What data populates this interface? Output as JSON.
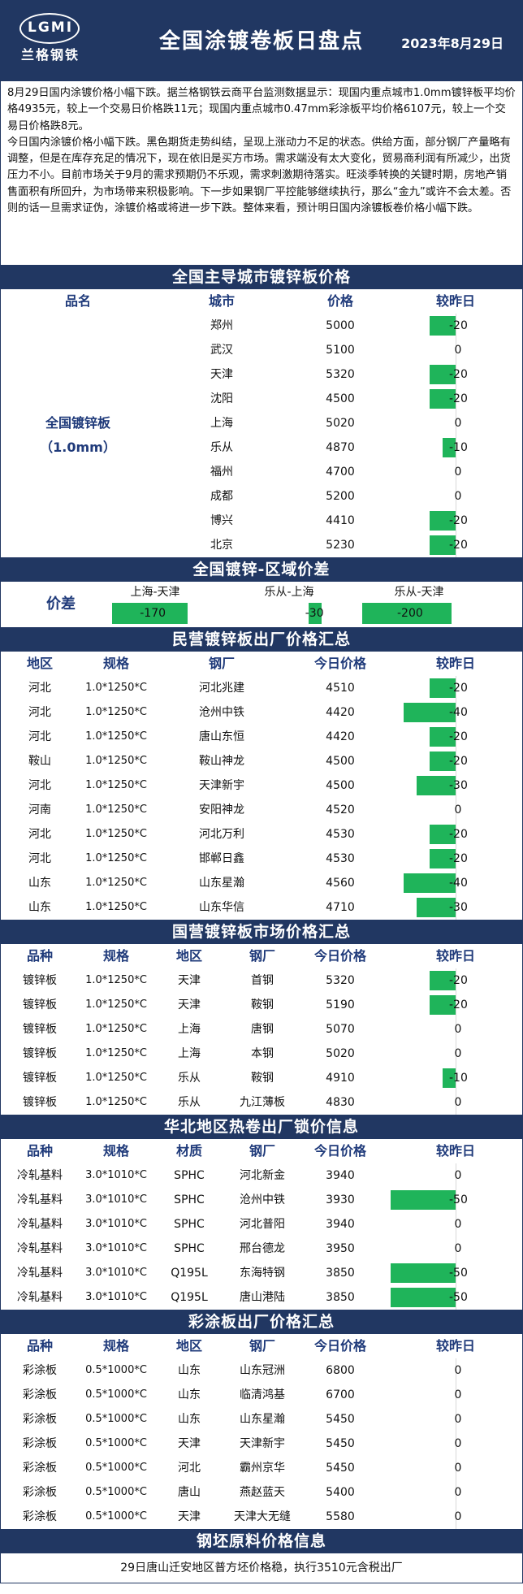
{
  "header": {
    "logo_mark": "LGMI",
    "logo_cn": "兰格钢铁",
    "title": "全国涂镀卷板日盘点",
    "date": "2023年8月29日"
  },
  "intro": {
    "p1": "8月29日国内涂镀价格小幅下跌。据兰格钢铁云商平台监测数据显示：现国内重点城市1.0mm镀锌板平均价格4935元，较上一个交易日价格跌11元；现国内重点城市0.47mm彩涂板平均价格6107元，较上一个交易日价格跌8元。",
    "p2": "今日国内涂镀价格小幅下跌。黑色期货走势纠结，呈现上涨动力不足的状态。供给方面，部分钢厂产量略有调整，但是在库存充足的情况下，现在依旧是买方市场。需求端没有太大变化，贸易商利润有所减少，出货压力不小。目前市场关于9月的需求预期仍不乐观，需求刺激期待落实。旺淡季转换的关键时期，房地产销售面积有所回升，为市场带来积极影响。下一步如果钢厂平控能够继续执行，那么“金九”或许不会太差。否则的话一旦需求证伪，涂镀价格或将进一步下跌。整体来看，预计明日国内涂镀板卷价格小幅下跌。"
  },
  "colors": {
    "navy": "#213762",
    "green": "#1fb45a",
    "label_blue": "#1f3a7a"
  },
  "s1": {
    "title": "全国主导城市镀锌板价格",
    "headers": [
      "品名",
      "城市",
      "价格",
      "较昨日"
    ],
    "product": "全国镀锌板",
    "spec": "（1.0mm）",
    "rows": [
      {
        "city": "郑州",
        "price": "5000",
        "chg": -20
      },
      {
        "city": "武汉",
        "price": "5100",
        "chg": 0
      },
      {
        "city": "天津",
        "price": "5320",
        "chg": -20
      },
      {
        "city": "沈阳",
        "price": "4500",
        "chg": -20
      },
      {
        "city": "上海",
        "price": "5020",
        "chg": 0
      },
      {
        "city": "乐从",
        "price": "4870",
        "chg": -10
      },
      {
        "city": "福州",
        "price": "4700",
        "chg": 0
      },
      {
        "city": "成都",
        "price": "5200",
        "chg": 0
      },
      {
        "city": "博兴",
        "price": "4410",
        "chg": -20
      },
      {
        "city": "北京",
        "price": "5230",
        "chg": -20
      }
    ]
  },
  "s2": {
    "title": "全国镀锌-区域价差",
    "label": "价差",
    "items": [
      {
        "name": "上海-天津",
        "value": -170
      },
      {
        "name": "乐从-上海",
        "value": -30
      },
      {
        "name": "乐从-天津",
        "value": -200
      }
    ]
  },
  "s3": {
    "title": "民营镀锌板出厂价格汇总",
    "headers": [
      "地区",
      "规格",
      "钢厂",
      "今日价格",
      "较昨日"
    ],
    "rows": [
      {
        "region": "河北",
        "spec": "1.0*1250*C",
        "mill": "河北兆建",
        "price": "4510",
        "chg": -20
      },
      {
        "region": "河北",
        "spec": "1.0*1250*C",
        "mill": "沧州中铁",
        "price": "4420",
        "chg": -40
      },
      {
        "region": "河北",
        "spec": "1.0*1250*C",
        "mill": "唐山东恒",
        "price": "4420",
        "chg": -20
      },
      {
        "region": "鞍山",
        "spec": "1.0*1250*C",
        "mill": "鞍山神龙",
        "price": "4500",
        "chg": -20
      },
      {
        "region": "河北",
        "spec": "1.0*1250*C",
        "mill": "天津新宇",
        "price": "4500",
        "chg": -30
      },
      {
        "region": "河南",
        "spec": "1.0*1250*C",
        "mill": "安阳神龙",
        "price": "4520",
        "chg": 0
      },
      {
        "region": "河北",
        "spec": "1.0*1250*C",
        "mill": "河北万利",
        "price": "4530",
        "chg": -20
      },
      {
        "region": "河北",
        "spec": "1.0*1250*C",
        "mill": "邯郸日鑫",
        "price": "4530",
        "chg": -20
      },
      {
        "region": "山东",
        "spec": "1.0*1250*C",
        "mill": "山东星瀚",
        "price": "4560",
        "chg": -40
      },
      {
        "region": "山东",
        "spec": "1.0*1250*C",
        "mill": "山东华信",
        "price": "4710",
        "chg": -30
      }
    ]
  },
  "s4": {
    "title": "国营镀锌板市场价格汇总",
    "headers": [
      "品种",
      "规格",
      "地区",
      "钢厂",
      "今日价格",
      "较昨日"
    ],
    "rows": [
      {
        "kind": "镀锌板",
        "spec": "1.0*1250*C",
        "region": "天津",
        "mill": "首钢",
        "price": "5320",
        "chg": -20
      },
      {
        "kind": "镀锌板",
        "spec": "1.0*1250*C",
        "region": "天津",
        "mill": "鞍钢",
        "price": "5190",
        "chg": -20
      },
      {
        "kind": "镀锌板",
        "spec": "1.0*1250*C",
        "region": "上海",
        "mill": "唐钢",
        "price": "5070",
        "chg": 0
      },
      {
        "kind": "镀锌板",
        "spec": "1.0*1250*C",
        "region": "上海",
        "mill": "本钢",
        "price": "5020",
        "chg": 0
      },
      {
        "kind": "镀锌板",
        "spec": "1.0*1250*C",
        "region": "乐从",
        "mill": "鞍钢",
        "price": "4910",
        "chg": -10
      },
      {
        "kind": "镀锌板",
        "spec": "1.0*1250*C",
        "region": "乐从",
        "mill": "九江薄板",
        "price": "4830",
        "chg": 0
      }
    ]
  },
  "s5": {
    "title": "华北地区热卷出厂锁价信息",
    "headers": [
      "品种",
      "规格",
      "材质",
      "钢厂",
      "今日价格",
      "较昨日"
    ],
    "rows": [
      {
        "kind": "冷轧基料",
        "spec": "3.0*1010*C",
        "mat": "SPHC",
        "mill": "河北新金",
        "price": "3940",
        "chg": 0
      },
      {
        "kind": "冷轧基料",
        "spec": "3.0*1010*C",
        "mat": "SPHC",
        "mill": "沧州中铁",
        "price": "3930",
        "chg": -50
      },
      {
        "kind": "冷轧基料",
        "spec": "3.0*1010*C",
        "mat": "SPHC",
        "mill": "河北普阳",
        "price": "3940",
        "chg": 0
      },
      {
        "kind": "冷轧基料",
        "spec": "3.0*1010*C",
        "mat": "SPHC",
        "mill": "邢台德龙",
        "price": "3950",
        "chg": 0
      },
      {
        "kind": "冷轧基料",
        "spec": "3.0*1010*C",
        "mat": "Q195L",
        "mill": "东海特钢",
        "price": "3850",
        "chg": -50
      },
      {
        "kind": "冷轧基料",
        "spec": "3.0*1010*C",
        "mat": "Q195L",
        "mill": "唐山港陆",
        "price": "3850",
        "chg": -50
      }
    ]
  },
  "s6": {
    "title": "彩涂板出厂价格汇总",
    "headers": [
      "品种",
      "规格",
      "地区",
      "钢厂",
      "今日价格",
      "较昨日"
    ],
    "rows": [
      {
        "kind": "彩涂板",
        "spec": "0.5*1000*C",
        "region": "山东",
        "mill": "山东冠洲",
        "price": "6800",
        "chg": 0
      },
      {
        "kind": "彩涂板",
        "spec": "0.5*1000*C",
        "region": "山东",
        "mill": "临清鸿基",
        "price": "6700",
        "chg": 0
      },
      {
        "kind": "彩涂板",
        "spec": "0.5*1000*C",
        "region": "山东",
        "mill": "山东星瀚",
        "price": "5450",
        "chg": 0
      },
      {
        "kind": "彩涂板",
        "spec": "0.5*1000*C",
        "region": "天津",
        "mill": "天津新宇",
        "price": "5450",
        "chg": 0
      },
      {
        "kind": "彩涂板",
        "spec": "0.5*1000*C",
        "region": "河北",
        "mill": "霸州京华",
        "price": "5450",
        "chg": 0
      },
      {
        "kind": "彩涂板",
        "spec": "0.5*1000*C",
        "region": "唐山",
        "mill": "燕赵蓝天",
        "price": "5400",
        "chg": 0
      },
      {
        "kind": "彩涂板",
        "spec": "0.5*1000*C",
        "region": "天津",
        "mill": "天津大无缝",
        "price": "5580",
        "chg": 0
      }
    ]
  },
  "s7": {
    "title": "钢坯原料价格信息",
    "note": "29日唐山迁安地区普方坯价格稳，执行3510元含税出厂"
  }
}
